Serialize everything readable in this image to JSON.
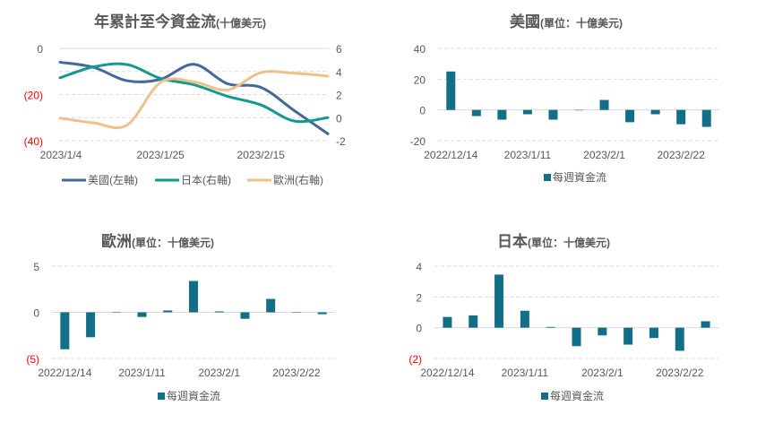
{
  "colors": {
    "us": "#41699a",
    "japan": "#14998f",
    "europe": "#f0c08a",
    "bar": "#126f87",
    "negative_tick": "#ff0000",
    "text": "#595959",
    "grid": "#d9d9d9"
  },
  "chart_data": [
    {
      "type": "line",
      "title": "年累計至今資金流",
      "title_suffix": "(十億美元)",
      "x": [
        "2023/1/4",
        "2023/1/11",
        "2023/1/18",
        "2023/1/25",
        "2023/2/1",
        "2023/2/8",
        "2023/2/15",
        "2023/2/22",
        "2023/3/1"
      ],
      "x_tick_labels": [
        "2023/1/4",
        "2023/1/25",
        "2023/2/15"
      ],
      "left_axis": {
        "ylim": [
          -40,
          0
        ],
        "ticks": [
          0,
          -20,
          -40
        ],
        "tick_labels": [
          "0",
          "(20)",
          "(40)"
        ]
      },
      "right_axis": {
        "ylim": [
          -2,
          6
        ],
        "ticks": [
          6,
          4,
          2,
          0,
          -2
        ],
        "tick_labels": [
          "6",
          "4",
          "2",
          "0",
          "-2"
        ]
      },
      "series": [
        {
          "name": "美國(左軸)",
          "axis": "left",
          "color_key": "us",
          "values": [
            -6,
            -8.2,
            -14,
            -13.4,
            -6.9,
            -15.3,
            -16.9,
            -27,
            -37
          ]
        },
        {
          "name": "日本(右軸)",
          "axis": "right",
          "color_key": "japan",
          "values": [
            3.45,
            4.4,
            4.6,
            3.4,
            2.85,
            1.85,
            1.1,
            -0.3,
            0
          ]
        },
        {
          "name": "歐洲(右軸)",
          "axis": "right",
          "color_key": "europe",
          "values": [
            -0.05,
            -0.45,
            -0.65,
            3.05,
            3.1,
            2.4,
            3.9,
            3.85,
            3.6
          ]
        }
      ],
      "legend": "bottom",
      "grid": true
    },
    {
      "type": "bar",
      "title": "美國",
      "title_suffix": "(單位：十億美元)",
      "categories": [
        "2022/12/14",
        "2022/12/21",
        "2023/1/4",
        "2023/1/11",
        "2023/1/18",
        "2023/1/25",
        "2023/2/1",
        "2023/2/8",
        "2023/2/15",
        "2023/2/22",
        "2023/3/1"
      ],
      "x_tick_labels": [
        "2022/12/14",
        "2023/1/11",
        "2023/2/1",
        "2023/2/22"
      ],
      "ylim": [
        -20,
        40
      ],
      "ticks": [
        40,
        20,
        0,
        -20
      ],
      "tick_labels": [
        "40",
        "20",
        "0",
        "-20"
      ],
      "series": [
        {
          "name": "每週資金流",
          "values": [
            25,
            -4,
            -6.3,
            -2.8,
            -6.3,
            0,
            6.5,
            -8,
            -2.8,
            -9.3,
            -11
          ]
        }
      ],
      "legend": "bottom",
      "grid": true
    },
    {
      "type": "bar",
      "title": "歐洲",
      "title_suffix": "(單位：十億美元)",
      "categories": [
        "2022/12/14",
        "2022/12/21",
        "2023/1/4",
        "2023/1/11",
        "2023/1/18",
        "2023/1/25",
        "2023/2/1",
        "2023/2/8",
        "2023/2/15",
        "2023/2/22",
        "2023/3/1"
      ],
      "x_tick_labels": [
        "2022/12/14",
        "2023/1/11",
        "2023/2/1",
        "2023/2/22"
      ],
      "ylim": [
        -5,
        5
      ],
      "ticks": [
        5,
        0,
        -5
      ],
      "tick_labels": [
        "5",
        "0",
        "(5)"
      ],
      "series": [
        {
          "name": "每週資金流",
          "values": [
            -4,
            -2.7,
            -0.05,
            -0.5,
            0.2,
            3.4,
            0.1,
            -0.7,
            1.45,
            -0.05,
            -0.2
          ]
        }
      ],
      "legend": "bottom",
      "grid": true
    },
    {
      "type": "bar",
      "title": "日本",
      "title_suffix": "(單位：十億美元)",
      "categories": [
        "2022/12/14",
        "2022/12/21",
        "2023/1/4",
        "2023/1/11",
        "2023/1/18",
        "2023/1/25",
        "2023/2/1",
        "2023/2/8",
        "2023/2/15",
        "2023/2/22",
        "2023/3/1"
      ],
      "x_tick_labels": [
        "2022/12/14",
        "2023/1/11",
        "2023/2/1",
        "2023/2/22"
      ],
      "ylim": [
        -2,
        4
      ],
      "ticks": [
        4,
        2,
        0,
        -2
      ],
      "tick_labels": [
        "4",
        "2",
        "0",
        "(2)"
      ],
      "series": [
        {
          "name": "每週資金流",
          "values": [
            0.7,
            0.8,
            3.45,
            1.1,
            0.05,
            -1.2,
            -0.5,
            -1.1,
            -0.67,
            -1.5,
            0.42
          ]
        }
      ],
      "legend": "bottom",
      "grid": true
    }
  ]
}
